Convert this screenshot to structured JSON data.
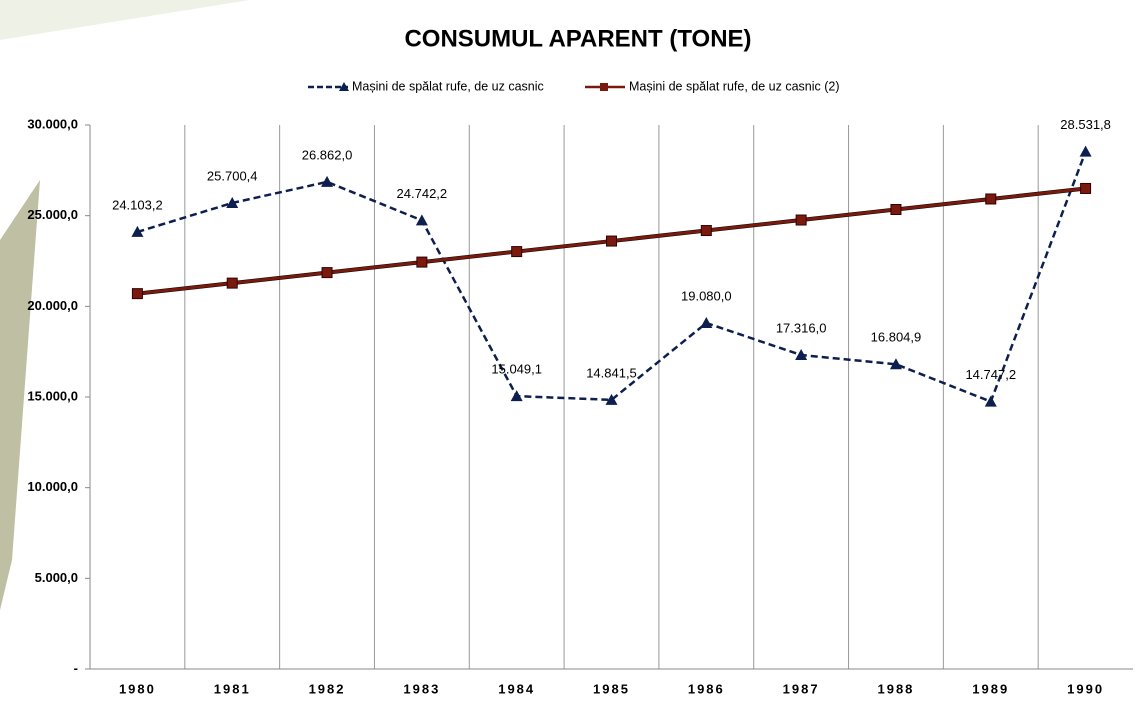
{
  "chart_data": {
    "type": "line",
    "title": "CONSUMUL APARENT (TONE)",
    "categories": [
      "1980",
      "1981",
      "1982",
      "1983",
      "1984",
      "1985",
      "1986",
      "1987",
      "1988",
      "1989",
      "1990"
    ],
    "series": [
      {
        "name": "Mașini de spălat rufe, de uz casnic",
        "color": "#0d1f4f",
        "dash": true,
        "marker": "triangle",
        "values": [
          24103.2,
          25700.4,
          26862.0,
          24742.2,
          15049.1,
          14841.5,
          19080.0,
          17316.0,
          16804.9,
          14747.2,
          28531.8
        ],
        "value_labels": [
          "24.103,2",
          "25.700,4",
          "26.862,0",
          "24.742,2",
          "15.049,1",
          "14.841,5",
          "19.080,0",
          "17.316,0",
          "16.804,9",
          "14.747,2",
          "28.531,8"
        ]
      },
      {
        "name": "Mașini de spălat rufe, de uz casnic (2)",
        "color": "#7a1a0e",
        "dash": false,
        "marker": "square",
        "values": [
          20700,
          21280,
          21860,
          22440,
          23020,
          23600,
          24180,
          24760,
          25340,
          25920,
          26500
        ]
      }
    ],
    "ylim": [
      0,
      30000
    ],
    "yticks": [
      {
        "value": 0,
        "label": "-"
      },
      {
        "value": 5000,
        "label": "5.000,0"
      },
      {
        "value": 10000,
        "label": "10.000,0"
      },
      {
        "value": 15000,
        "label": "15.000,0"
      },
      {
        "value": 20000,
        "label": "20.000,0"
      },
      {
        "value": 25000,
        "label": "25.000,0"
      },
      {
        "value": 30000,
        "label": "30.000,0"
      }
    ],
    "grid": true
  }
}
